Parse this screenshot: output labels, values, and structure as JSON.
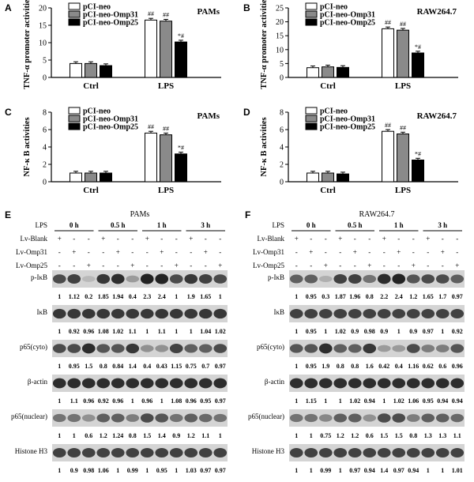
{
  "chart_data": [
    {
      "panel": "A",
      "type": "bar",
      "title": "PAMs",
      "ylabel": "TNF-α promoter activities",
      "categories": [
        "Ctrl",
        "LPS"
      ],
      "ylim": [
        0,
        20
      ],
      "yticks": [
        0,
        5,
        10,
        15,
        20
      ],
      "series": [
        {
          "name": "pCI-neo",
          "values": [
            4.0,
            16.5
          ]
        },
        {
          "name": "pCI-neo-Omp31",
          "values": [
            4.0,
            16.2
          ]
        },
        {
          "name": "pCI-neo-Omp25",
          "values": [
            3.4,
            10.2
          ]
        }
      ],
      "annotations": [
        [
          "",
          "##"
        ],
        [
          "",
          "##"
        ],
        [
          "",
          "*#"
        ]
      ]
    },
    {
      "panel": "B",
      "type": "bar",
      "title": "RAW264.7",
      "ylabel": "TNF-α promoter activities",
      "categories": [
        "Ctrl",
        "LPS"
      ],
      "ylim": [
        0,
        25
      ],
      "yticks": [
        0,
        5,
        10,
        15,
        20,
        25
      ],
      "series": [
        {
          "name": "pCI-neo",
          "values": [
            3.5,
            17.5
          ]
        },
        {
          "name": "pCI-neo-Omp31",
          "values": [
            3.8,
            17.0
          ]
        },
        {
          "name": "pCI-neo-Omp25",
          "values": [
            3.6,
            8.8
          ]
        }
      ],
      "annotations": [
        [
          "",
          "##"
        ],
        [
          "",
          "##"
        ],
        [
          "",
          "*#"
        ]
      ]
    },
    {
      "panel": "C",
      "type": "bar",
      "title": "PAMs",
      "ylabel": "NF-κ B activities",
      "categories": [
        "Ctrl",
        "LPS"
      ],
      "ylim": [
        0,
        8
      ],
      "yticks": [
        0,
        2,
        4,
        6,
        8
      ],
      "series": [
        {
          "name": "pCI-neo",
          "values": [
            1.0,
            5.6
          ]
        },
        {
          "name": "pCI-neo-Omp31",
          "values": [
            1.0,
            5.4
          ]
        },
        {
          "name": "pCI-neo-Omp25",
          "values": [
            1.0,
            3.2
          ]
        }
      ],
      "annotations": [
        [
          "",
          "##"
        ],
        [
          "",
          "##"
        ],
        [
          "",
          "*#"
        ]
      ]
    },
    {
      "panel": "D",
      "type": "bar",
      "title": "RAW264.7",
      "ylabel": "NF-κ B activities",
      "categories": [
        "Ctrl",
        "LPS"
      ],
      "ylim": [
        0,
        8
      ],
      "yticks": [
        0,
        2,
        4,
        6,
        8
      ],
      "series": [
        {
          "name": "pCI-neo",
          "values": [
            1.0,
            5.8
          ]
        },
        {
          "name": "pCI-neo-Omp31",
          "values": [
            1.0,
            5.5
          ]
        },
        {
          "name": "pCI-neo-Omp25",
          "values": [
            0.9,
            2.5
          ]
        }
      ],
      "annotations": [
        [
          "",
          "##"
        ],
        [
          "",
          "##"
        ],
        [
          "",
          "*#"
        ]
      ]
    }
  ],
  "colors": {
    "series": [
      "#ffffff",
      "#8a8a8a",
      "#000000"
    ]
  },
  "blots": [
    {
      "panel": "E",
      "title": "PAMs",
      "timepoints": [
        "0 h",
        "0.5 h",
        "1 h",
        "3 h"
      ],
      "treat_rows": [
        {
          "label": "LPS",
          "marks": []
        },
        {
          "label": "Lv-Blank",
          "marks": [
            "+",
            "-",
            "-",
            "+",
            "-",
            "-",
            "+",
            "-",
            "-",
            "+",
            "-",
            "-"
          ]
        },
        {
          "label": "Lv-Omp31",
          "marks": [
            "-",
            "+",
            "-",
            "-",
            "+",
            "-",
            "-",
            "+",
            "-",
            "-",
            "+",
            "-"
          ]
        },
        {
          "label": "Lv-Omp25",
          "marks": [
            "-",
            "-",
            "+",
            "-",
            "-",
            "+",
            "-",
            "-",
            "+",
            "-",
            "-",
            "+"
          ]
        }
      ],
      "bands": [
        {
          "label": "p-IκB",
          "values": [
            "1",
            "1.12",
            "0.2",
            "1.85",
            "1.94",
            "0.4",
            "2.3",
            "2.4",
            "1",
            "1.9",
            "1.65",
            "1"
          ],
          "intensities": [
            0.8,
            0.85,
            0.25,
            0.9,
            0.95,
            0.4,
            1.0,
            1.0,
            0.8,
            0.9,
            0.85,
            0.8
          ]
        },
        {
          "label": "IκB",
          "values": [
            "1",
            "0.92",
            "0.96",
            "1.08",
            "1.02",
            "1.1",
            "1",
            "1.1",
            "1",
            "1",
            "1.04",
            "1.02"
          ],
          "intensities": [
            0.9,
            0.9,
            0.9,
            0.9,
            0.9,
            0.9,
            0.9,
            0.9,
            0.9,
            0.9,
            0.9,
            0.9
          ]
        },
        {
          "label": "p65(cyto)",
          "values": [
            "1",
            "0.95",
            "1.5",
            "0.8",
            "0.84",
            "1.4",
            "0.4",
            "0.43",
            "1.15",
            "0.75",
            "0.7",
            "0.97"
          ],
          "intensities": [
            0.8,
            0.8,
            0.95,
            0.75,
            0.75,
            0.9,
            0.45,
            0.45,
            0.85,
            0.7,
            0.7,
            0.8
          ]
        },
        {
          "label": "β-actin",
          "values": [
            "1",
            "1.1",
            "0.96",
            "0.92",
            "0.96",
            "1",
            "0.96",
            "1",
            "1.08",
            "0.96",
            "0.95",
            "0.97"
          ],
          "intensities": [
            0.95,
            0.95,
            0.95,
            0.95,
            0.95,
            0.95,
            0.95,
            0.95,
            0.95,
            0.95,
            0.95,
            0.95
          ]
        },
        {
          "label": "p65(nuclear)",
          "values": [
            "1",
            "1",
            "0.6",
            "1.2",
            "1.24",
            "0.8",
            "1.5",
            "1.4",
            "0.9",
            "1.2",
            "1.1",
            "1"
          ],
          "intensities": [
            0.6,
            0.6,
            0.45,
            0.7,
            0.7,
            0.55,
            0.8,
            0.75,
            0.6,
            0.7,
            0.65,
            0.6
          ]
        },
        {
          "label": "Histone H3",
          "values": [
            "1",
            "0.9",
            "0.98",
            "1.06",
            "1",
            "0.99",
            "1",
            "0.95",
            "1",
            "1.03",
            "0.97",
            "0.97"
          ],
          "intensities": [
            0.85,
            0.85,
            0.85,
            0.85,
            0.85,
            0.85,
            0.85,
            0.85,
            0.85,
            0.85,
            0.85,
            0.85
          ]
        }
      ]
    },
    {
      "panel": "F",
      "title": "RAW264.7",
      "timepoints": [
        "0 h",
        "0.5 h",
        "1 h",
        "3 h"
      ],
      "treat_rows": [
        {
          "label": "LPS",
          "marks": []
        },
        {
          "label": "Lv-Blank",
          "marks": [
            "+",
            "-",
            "-",
            "+",
            "-",
            "-",
            "+",
            "-",
            "-",
            "+",
            "-",
            "-"
          ]
        },
        {
          "label": "Lv-Omp31",
          "marks": [
            "-",
            "+",
            "-",
            "-",
            "+",
            "-",
            "-",
            "+",
            "-",
            "-",
            "+",
            "-"
          ]
        },
        {
          "label": "Lv-Omp25",
          "marks": [
            "-",
            "-",
            "+",
            "-",
            "-",
            "+",
            "-",
            "-",
            "+",
            "-",
            "-",
            "+"
          ]
        }
      ],
      "bands": [
        {
          "label": "p-IκB",
          "values": [
            "1",
            "0.95",
            "0.3",
            "1.87",
            "1.96",
            "0.8",
            "2.2",
            "2.4",
            "1.2",
            "1.65",
            "1.7",
            "0.97"
          ],
          "intensities": [
            0.7,
            0.7,
            0.3,
            0.85,
            0.85,
            0.6,
            0.95,
            1.0,
            0.75,
            0.8,
            0.8,
            0.7
          ]
        },
        {
          "label": "IκB",
          "values": [
            "1",
            "0.95",
            "1",
            "1.02",
            "0.9",
            "0.98",
            "0.9",
            "1",
            "0.9",
            "0.97",
            "1",
            "0.92"
          ],
          "intensities": [
            0.85,
            0.85,
            0.85,
            0.85,
            0.85,
            0.85,
            0.85,
            0.85,
            0.85,
            0.85,
            0.85,
            0.85
          ]
        },
        {
          "label": "p65(cyto)",
          "values": [
            "1",
            "0.95",
            "1.9",
            "0.8",
            "0.8",
            "1.6",
            "0.42",
            "0.4",
            "1.16",
            "0.62",
            "0.6",
            "0.96"
          ],
          "intensities": [
            0.75,
            0.75,
            0.95,
            0.7,
            0.7,
            0.9,
            0.4,
            0.4,
            0.8,
            0.55,
            0.55,
            0.75
          ]
        },
        {
          "label": "β-actin",
          "values": [
            "1",
            "1.15",
            "1",
            "1",
            "1.02",
            "0.94",
            "1",
            "1.02",
            "1.06",
            "0.95",
            "0.94",
            "0.94"
          ],
          "intensities": [
            0.95,
            0.95,
            0.95,
            0.95,
            0.95,
            0.95,
            0.95,
            0.95,
            0.95,
            0.95,
            0.95,
            0.95
          ]
        },
        {
          "label": "p65(nuclear)",
          "values": [
            "1",
            "1",
            "0.75",
            "1.2",
            "1.2",
            "0.6",
            "1.5",
            "1.5",
            "0.8",
            "1.3",
            "1.3",
            "1.1"
          ],
          "intensities": [
            0.6,
            0.6,
            0.5,
            0.7,
            0.7,
            0.45,
            0.8,
            0.8,
            0.55,
            0.7,
            0.7,
            0.65
          ]
        },
        {
          "label": "Histone H3",
          "values": [
            "1",
            "1",
            "0.99",
            "1",
            "0.97",
            "0.94",
            "1.4",
            "0.97",
            "0.94",
            "1",
            "1",
            "1.01"
          ],
          "intensities": [
            0.85,
            0.85,
            0.85,
            0.85,
            0.85,
            0.85,
            0.85,
            0.85,
            0.85,
            0.85,
            0.85,
            0.85
          ]
        }
      ]
    }
  ]
}
